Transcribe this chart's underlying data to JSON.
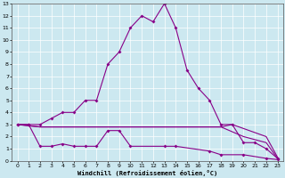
{
  "xlabel": "Windchill (Refroidissement éolien,°C)",
  "bg_color": "#cce8f0",
  "line_color": "#880088",
  "xlim": [
    -0.5,
    23.5
  ],
  "ylim": [
    0,
    13
  ],
  "xticks": [
    0,
    1,
    2,
    3,
    4,
    5,
    6,
    7,
    8,
    9,
    10,
    11,
    12,
    13,
    14,
    15,
    16,
    17,
    18,
    19,
    20,
    21,
    22,
    23
  ],
  "yticks": [
    0,
    1,
    2,
    3,
    4,
    5,
    6,
    7,
    8,
    9,
    10,
    11,
    12,
    13
  ],
  "series1_x": [
    0,
    1,
    2,
    3,
    4,
    5,
    6,
    7,
    8,
    9,
    10,
    11,
    12,
    13,
    14,
    15,
    16,
    17,
    18,
    19,
    20,
    21,
    22,
    23
  ],
  "series1_y": [
    3,
    3,
    3,
    3.5,
    4,
    4,
    5,
    5,
    8,
    9,
    11,
    12,
    11.5,
    13,
    11,
    7.5,
    6,
    5,
    3,
    3,
    1.5,
    1.5,
    1,
    0.2
  ],
  "series2_x": [
    0,
    2,
    9,
    13,
    18,
    19,
    22,
    23
  ],
  "series2_y": [
    3,
    2.8,
    2.8,
    2.8,
    2.8,
    3.0,
    2.0,
    0.3
  ],
  "series3_x": [
    0,
    2,
    9,
    13,
    18,
    20,
    22,
    23
  ],
  "series3_y": [
    3,
    2.8,
    2.8,
    2.8,
    2.8,
    2.0,
    1.5,
    0.2
  ],
  "series4_x": [
    0,
    1,
    2,
    3,
    4,
    5,
    6,
    7,
    8,
    9,
    10,
    13,
    14,
    17,
    18,
    20,
    22,
    23
  ],
  "series4_y": [
    3,
    3,
    1.2,
    1.2,
    1.4,
    1.2,
    1.2,
    1.2,
    2.5,
    2.5,
    1.2,
    1.2,
    1.2,
    0.8,
    0.5,
    0.5,
    0.2,
    0.1
  ],
  "grid_color": "#aaccdd"
}
